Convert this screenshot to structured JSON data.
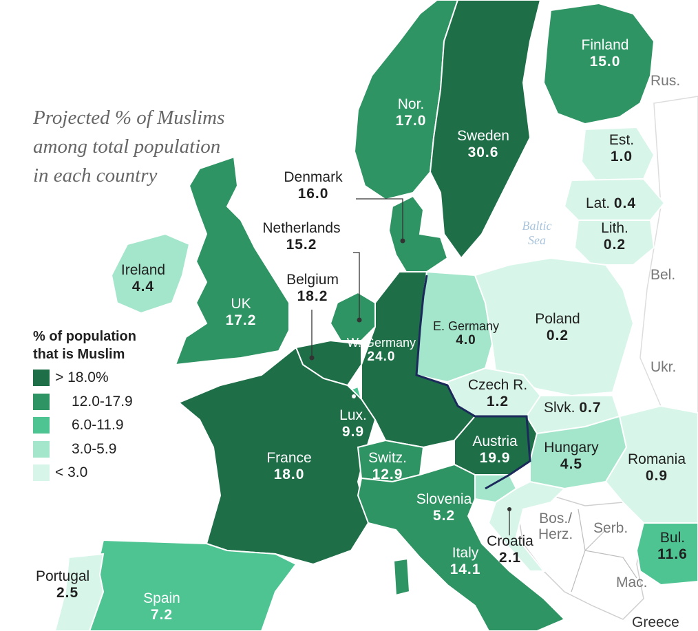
{
  "title": [
    "Projected % of Muslims",
    "among total population",
    "in each country"
  ],
  "legend": {
    "title_line1": "% of population",
    "title_line2": "that is Muslim",
    "items": [
      {
        "label": "> 18.0%",
        "color": "#1e6e48"
      },
      {
        "label": "12.0-17.9",
        "color": "#2f9463"
      },
      {
        "label": "6.0-11.9",
        "color": "#4fc493"
      },
      {
        "label": "3.0-5.9",
        "color": "#a3e6cb"
      },
      {
        "label": "< 3.0",
        "color": "#d8f5e9"
      }
    ]
  },
  "countries": {
    "finland": {
      "name": "Finland",
      "value": "15.0"
    },
    "norway": {
      "name": "Nor.",
      "value": "17.0"
    },
    "sweden": {
      "name": "Sweden",
      "value": "30.6"
    },
    "estonia": {
      "name": "Est.",
      "value": "1.0"
    },
    "latvia": {
      "name": "Lat.",
      "value": "0.4"
    },
    "lithuania": {
      "name": "Lith.",
      "value": "0.2"
    },
    "denmark": {
      "name": "Denmark",
      "value": "16.0"
    },
    "netherlands": {
      "name": "Netherlands",
      "value": "15.2"
    },
    "belgium": {
      "name": "Belgium",
      "value": "18.2"
    },
    "ireland": {
      "name": "Ireland",
      "value": "4.4"
    },
    "uk": {
      "name": "UK",
      "value": "17.2"
    },
    "west_germany": {
      "name": "W. Germany",
      "value": "24.0"
    },
    "east_germany": {
      "name": "E. Germany",
      "value": "4.0"
    },
    "poland": {
      "name": "Poland",
      "value": "0.2"
    },
    "czech": {
      "name": "Czech R.",
      "value": "1.2"
    },
    "slovakia": {
      "name": "Slvk.",
      "value": "0.7"
    },
    "luxembourg": {
      "name": "Lux.",
      "value": "9.9"
    },
    "france": {
      "name": "France",
      "value": "18.0"
    },
    "switzerland": {
      "name": "Switz.",
      "value": "12.9"
    },
    "austria": {
      "name": "Austria",
      "value": "19.9"
    },
    "hungary": {
      "name": "Hungary",
      "value": "4.5"
    },
    "romania": {
      "name": "Romania",
      "value": "0.9"
    },
    "slovenia": {
      "name": "Slovenia",
      "value": "5.2"
    },
    "croatia": {
      "name": "Croatia",
      "value": "2.1"
    },
    "italy": {
      "name": "Italy",
      "value": "14.1"
    },
    "bulgaria": {
      "name": "Bul.",
      "value": "11.6"
    },
    "portugal": {
      "name": "Portugal",
      "value": "2.5"
    },
    "spain": {
      "name": "Spain",
      "value": "7.2"
    }
  },
  "other_labels": {
    "russia": "Rus.",
    "belarus": "Bel.",
    "ukraine": "Ukr.",
    "bosnia_line1": "Bos./",
    "bosnia_line2": "Herz.",
    "serbia": "Serb.",
    "macedonia": "Mac.",
    "greece": "Greece",
    "baltic_line1": "Baltic",
    "baltic_line2": "Sea"
  }
}
